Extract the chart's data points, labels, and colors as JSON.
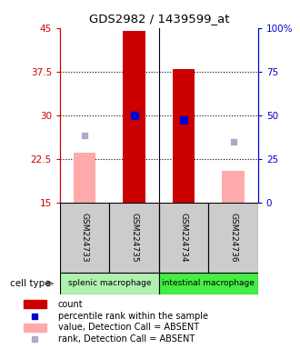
{
  "title": "GDS2982 / 1439599_at",
  "samples": [
    "GSM224733",
    "GSM224735",
    "GSM224734",
    "GSM224736"
  ],
  "groups": [
    {
      "name": "splenic macrophage",
      "color": "#90ee90"
    },
    {
      "name": "intestinal macrophage",
      "color": "#44dd44"
    }
  ],
  "bar_values": [
    null,
    44.5,
    38.0,
    null
  ],
  "bar_color": "#cc0000",
  "absent_bar_values": [
    23.5,
    null,
    null,
    20.5
  ],
  "absent_bar_color": "#ffaaaa",
  "rank_values": [
    null,
    30.0,
    29.2,
    null
  ],
  "rank_color": "#0000cc",
  "absent_rank_values": [
    26.5,
    null,
    null,
    25.5
  ],
  "absent_rank_color": "#aaaacc",
  "ylim_left": [
    15,
    45
  ],
  "ylim_right": [
    0,
    100
  ],
  "yticks_left": [
    15,
    22.5,
    30,
    37.5,
    45
  ],
  "yticks_right": [
    0,
    25,
    50,
    75,
    100
  ],
  "ytick_labels_left": [
    "15",
    "22.5",
    "30",
    "37.5",
    "45"
  ],
  "ytick_labels_right": [
    "0",
    "25",
    "50",
    "75",
    "100%"
  ],
  "left_axis_color": "#cc0000",
  "right_axis_color": "#0000cc",
  "bar_width": 0.45,
  "rank_marker_size": 6,
  "absent_rank_marker_size": 5,
  "legend_items": [
    {
      "label": "count",
      "color": "#cc0000",
      "type": "rect"
    },
    {
      "label": "percentile rank within the sample",
      "color": "#0000cc",
      "type": "square"
    },
    {
      "label": "value, Detection Call = ABSENT",
      "color": "#ffaaaa",
      "type": "rect"
    },
    {
      "label": "rank, Detection Call = ABSENT",
      "color": "#aaaacc",
      "type": "square"
    }
  ],
  "cell_type_label": "cell type",
  "sample_box_color": "#cccccc",
  "group1_color": "#b0f0b0",
  "group2_color": "#44ee44"
}
